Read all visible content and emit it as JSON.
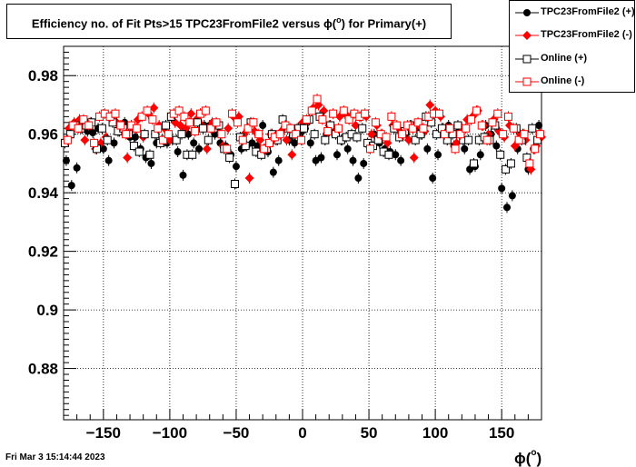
{
  "title": {
    "prefix": "Efficiency no. of Fit Pts>15 TPC23FromFile2 versus ",
    "phi": "ϕ(",
    "sup": "o",
    "suffix": ") for Primary(+)"
  },
  "timestamp": "Fri Mar  3 15:14:44 2023",
  "x_axis_label": {
    "phi": "ϕ(",
    "sup": "o",
    "close": ")"
  },
  "legend": [
    {
      "label": "TPC23FromFile2 (+)",
      "marker": "filled-circle",
      "color": "#000000"
    },
    {
      "label": "TPC23FromFile2 (-)",
      "marker": "filled-diamond",
      "color": "#ff0000"
    },
    {
      "label": "Online (+)",
      "marker": "open-square",
      "color": "#000000"
    },
    {
      "label": "Online (-)",
      "marker": "open-square",
      "color": "#ff0000"
    }
  ],
  "chart_data": {
    "type": "scatter",
    "xlim": [
      -180,
      180
    ],
    "ylim": [
      0.8625,
      0.99
    ],
    "grid": true,
    "legend_position": "top-right",
    "x_ticks": [
      -150,
      -100,
      -50,
      0,
      50,
      100,
      150
    ],
    "x_tick_labels": [
      "−150",
      "−100",
      "−50",
      "0",
      "50",
      "100",
      "150"
    ],
    "y_ticks": [
      0.88,
      0.9,
      0.92,
      0.94,
      0.96,
      0.98
    ],
    "y_tick_labels": [
      "0.88",
      "0.9",
      "0.92",
      "0.94",
      "0.96",
      "0.98"
    ],
    "series": [
      {
        "name": "TPC23FromFile2 (+)",
        "color": "#000000",
        "marker": "filled-circle",
        "x": [
          -178,
          -174,
          -170,
          -166,
          -162,
          -158,
          -154,
          -150,
          -146,
          -142,
          -138,
          -134,
          -130,
          -126,
          -122,
          -118,
          -114,
          -110,
          -106,
          -102,
          -98,
          -94,
          -90,
          -86,
          -82,
          -78,
          -74,
          -70,
          -66,
          -62,
          -58,
          -54,
          -50,
          -46,
          -42,
          -38,
          -34,
          -30,
          -26,
          -22,
          -18,
          -14,
          -10,
          -6,
          -2,
          2,
          6,
          10,
          14,
          18,
          22,
          26,
          30,
          34,
          38,
          42,
          46,
          50,
          54,
          58,
          62,
          66,
          70,
          74,
          78,
          82,
          86,
          90,
          94,
          98,
          102,
          106,
          110,
          114,
          118,
          122,
          126,
          130,
          134,
          138,
          142,
          146,
          150,
          154,
          158,
          162,
          166,
          170,
          174,
          178
        ],
        "y": [
          0.951,
          0.9425,
          0.9485,
          0.962,
          0.961,
          0.9605,
          0.962,
          0.955,
          0.951,
          0.957,
          0.961,
          0.964,
          0.959,
          0.959,
          0.955,
          0.952,
          0.95,
          0.957,
          0.958,
          0.957,
          0.958,
          0.954,
          0.946,
          0.96,
          0.957,
          0.955,
          0.963,
          0.963,
          0.96,
          0.957,
          0.956,
          0.953,
          0.949,
          0.955,
          0.956,
          0.957,
          0.956,
          0.963,
          0.954,
          0.947,
          0.951,
          0.962,
          0.958,
          0.957,
          0.96,
          0.962,
          0.957,
          0.951,
          0.952,
          0.96,
          0.961,
          0.953,
          0.958,
          0.955,
          0.951,
          0.945,
          0.95,
          0.956,
          0.96,
          0.957,
          0.955,
          0.954,
          0.953,
          0.951,
          0.96,
          0.963,
          0.962,
          0.96,
          0.955,
          0.945,
          0.953,
          0.962,
          0.963,
          0.956,
          0.961,
          0.955,
          0.948,
          0.949,
          0.953,
          0.963,
          0.96,
          0.956,
          0.9415,
          0.935,
          0.939,
          0.955,
          0.96,
          0.948,
          0.955,
          0.963
        ]
      },
      {
        "name": "TPC23FromFile2 (-)",
        "color": "#ff0000",
        "marker": "filled-diamond",
        "x": [
          -176,
          -172,
          -168,
          -164,
          -160,
          -156,
          -152,
          -148,
          -144,
          -140,
          -136,
          -132,
          -128,
          -124,
          -120,
          -116,
          -112,
          -108,
          -104,
          -100,
          -96,
          -92,
          -88,
          -84,
          -80,
          -76,
          -72,
          -68,
          -64,
          -60,
          -56,
          -52,
          -48,
          -44,
          -40,
          -36,
          -32,
          -28,
          -24,
          -20,
          -16,
          -12,
          -8,
          -4,
          0,
          4,
          8,
          12,
          16,
          20,
          24,
          28,
          32,
          36,
          40,
          44,
          48,
          52,
          56,
          60,
          64,
          68,
          72,
          76,
          80,
          84,
          88,
          92,
          96,
          100,
          104,
          108,
          112,
          116,
          120,
          124,
          128,
          132,
          136,
          140,
          144,
          148,
          152,
          156,
          160,
          164,
          168,
          172,
          176,
          180
        ],
        "y": [
          0.962,
          0.964,
          0.965,
          0.958,
          0.964,
          0.955,
          0.957,
          0.959,
          0.966,
          0.964,
          0.963,
          0.952,
          0.962,
          0.965,
          0.959,
          0.967,
          0.969,
          0.963,
          0.962,
          0.958,
          0.964,
          0.963,
          0.962,
          0.967,
          0.965,
          0.963,
          0.955,
          0.964,
          0.962,
          0.956,
          0.962,
          0.966,
          0.966,
          0.96,
          0.945,
          0.961,
          0.958,
          0.955,
          0.96,
          0.958,
          0.961,
          0.958,
          0.953,
          0.962,
          0.964,
          0.964,
          0.969,
          0.97,
          0.968,
          0.963,
          0.961,
          0.966,
          0.967,
          0.966,
          0.963,
          0.966,
          0.966,
          0.96,
          0.963,
          0.96,
          0.957,
          0.963,
          0.962,
          0.96,
          0.958,
          0.952,
          0.963,
          0.961,
          0.97,
          0.968,
          0.966,
          0.962,
          0.961,
          0.957,
          0.962,
          0.965,
          0.966,
          0.968,
          0.963,
          0.96,
          0.965,
          0.961,
          0.959,
          0.963,
          0.956,
          0.96,
          0.958,
          0.948,
          0.956,
          0.959
        ]
      },
      {
        "name": "Online (+)",
        "color": "#000000",
        "marker": "open-square",
        "x": [
          -179,
          -175,
          -171,
          -167,
          -163,
          -159,
          -155,
          -151,
          -147,
          -143,
          -139,
          -135,
          -131,
          -127,
          -123,
          -119,
          -115,
          -111,
          -107,
          -103,
          -99,
          -95,
          -91,
          -87,
          -83,
          -79,
          -75,
          -71,
          -67,
          -63,
          -59,
          -55,
          -51,
          -47,
          -43,
          -39,
          -35,
          -31,
          -27,
          -23,
          -19,
          -15,
          -11,
          -7,
          -3,
          1,
          5,
          9,
          13,
          17,
          21,
          25,
          29,
          33,
          37,
          41,
          45,
          49,
          53,
          57,
          61,
          65,
          69,
          73,
          77,
          81,
          85,
          89,
          93,
          97,
          101,
          105,
          109,
          113,
          117,
          121,
          125,
          129,
          133,
          137,
          141,
          145,
          149,
          153,
          157,
          161,
          165,
          169,
          173,
          177
        ],
        "y": [
          0.957,
          0.96,
          0.963,
          0.962,
          0.963,
          0.964,
          0.955,
          0.962,
          0.958,
          0.964,
          0.961,
          0.962,
          0.96,
          0.956,
          0.954,
          0.96,
          0.953,
          0.96,
          0.957,
          0.963,
          0.966,
          0.958,
          0.96,
          0.953,
          0.953,
          0.964,
          0.962,
          0.958,
          0.962,
          0.963,
          0.955,
          0.952,
          0.943,
          0.959,
          0.956,
          0.964,
          0.954,
          0.953,
          0.955,
          0.96,
          0.958,
          0.965,
          0.962,
          0.96,
          0.962,
          0.962,
          0.965,
          0.96,
          0.966,
          0.958,
          0.963,
          0.96,
          0.958,
          0.959,
          0.96,
          0.959,
          0.962,
          0.957,
          0.956,
          0.958,
          0.954,
          0.953,
          0.962,
          0.959,
          0.961,
          0.963,
          0.958,
          0.96,
          0.966,
          0.964,
          0.96,
          0.962,
          0.958,
          0.96,
          0.963,
          0.958,
          0.958,
          0.95,
          0.958,
          0.959,
          0.958,
          0.963,
          0.953,
          0.948,
          0.95,
          0.962,
          0.958,
          0.952,
          0.962,
          0.958
        ]
      },
      {
        "name": "Online (-)",
        "color": "#ff0000",
        "marker": "open-square",
        "x": [
          -177,
          -173,
          -169,
          -165,
          -161,
          -157,
          -153,
          -149,
          -145,
          -141,
          -137,
          -133,
          -129,
          -125,
          -121,
          -117,
          -113,
          -109,
          -105,
          -101,
          -97,
          -93,
          -89,
          -85,
          -81,
          -77,
          -73,
          -69,
          -65,
          -61,
          -57,
          -53,
          -49,
          -45,
          -41,
          -37,
          -33,
          -29,
          -25,
          -21,
          -17,
          -13,
          -9,
          -5,
          -1,
          3,
          7,
          11,
          15,
          19,
          23,
          27,
          31,
          35,
          39,
          43,
          47,
          51,
          55,
          59,
          63,
          67,
          71,
          75,
          79,
          83,
          87,
          91,
          95,
          99,
          103,
          107,
          111,
          115,
          119,
          123,
          127,
          131,
          135,
          139,
          143,
          147,
          151,
          155,
          159,
          163,
          167,
          171,
          175,
          179
        ],
        "y": [
          0.958,
          0.963,
          0.962,
          0.965,
          0.963,
          0.957,
          0.966,
          0.967,
          0.966,
          0.967,
          0.963,
          0.96,
          0.963,
          0.962,
          0.966,
          0.968,
          0.965,
          0.962,
          0.958,
          0.96,
          0.967,
          0.968,
          0.966,
          0.964,
          0.961,
          0.967,
          0.968,
          0.962,
          0.964,
          0.96,
          0.955,
          0.967,
          0.964,
          0.958,
          0.962,
          0.964,
          0.96,
          0.955,
          0.957,
          0.959,
          0.96,
          0.963,
          0.962,
          0.96,
          0.958,
          0.965,
          0.968,
          0.972,
          0.965,
          0.961,
          0.967,
          0.962,
          0.968,
          0.965,
          0.967,
          0.966,
          0.967,
          0.955,
          0.964,
          0.96,
          0.959,
          0.966,
          0.963,
          0.96,
          0.963,
          0.962,
          0.964,
          0.962,
          0.966,
          0.967,
          0.967,
          0.96,
          0.962,
          0.955,
          0.96,
          0.962,
          0.965,
          0.968,
          0.963,
          0.958,
          0.964,
          0.967,
          0.96,
          0.966,
          0.962,
          0.958,
          0.96,
          0.95,
          0.955,
          0.96
        ]
      }
    ]
  }
}
